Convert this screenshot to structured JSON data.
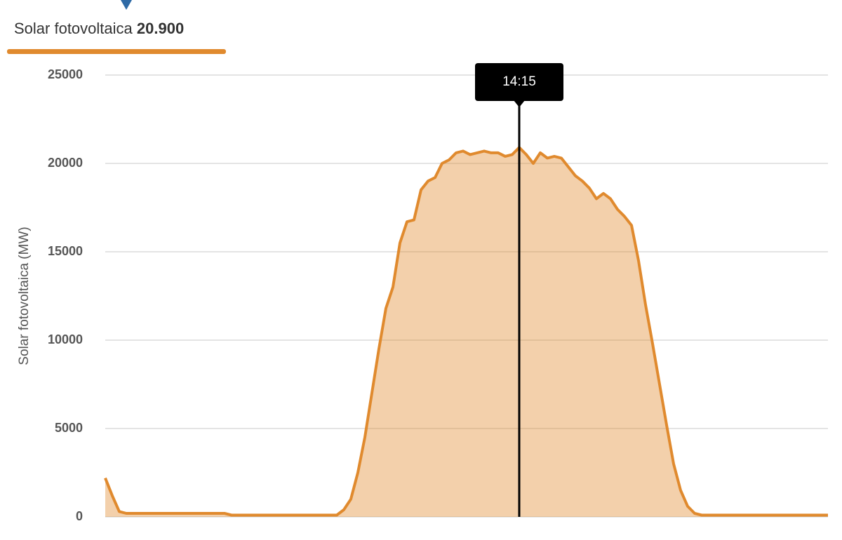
{
  "chart_data": {
    "type": "area",
    "ylabel": "Solar fotovoltaica (MW)",
    "readout_value": "20.900",
    "categories": [
      null,
      null,
      null,
      null,
      null,
      null,
      null,
      null,
      null,
      null,
      null,
      null,
      null,
      null,
      null,
      null,
      null,
      null,
      null,
      null,
      null,
      null,
      null,
      null,
      null,
      null,
      null,
      null,
      null,
      null,
      null,
      null,
      null,
      null,
      null,
      null,
      null,
      null,
      null,
      null,
      null,
      null,
      null,
      null,
      null,
      null,
      null,
      null,
      null,
      null,
      null,
      null,
      null,
      null,
      null,
      null,
      null,
      null,
      null,
      "14:15",
      null,
      null,
      null,
      null,
      null,
      null,
      null,
      null,
      null,
      null,
      null,
      null,
      null,
      null,
      null,
      null,
      null,
      null,
      null,
      null,
      null,
      null,
      null,
      null,
      null,
      null,
      null,
      null,
      null,
      null,
      null,
      null,
      null,
      null,
      null,
      null,
      null,
      null,
      null,
      null,
      null,
      null,
      null,
      null
    ],
    "series": [
      {
        "name": "Solar fotovoltaica",
        "color": "#e08a2e",
        "values": [
          2200,
          1200,
          300,
          200,
          200,
          200,
          200,
          200,
          200,
          200,
          200,
          200,
          200,
          200,
          200,
          200,
          200,
          200,
          100,
          100,
          100,
          100,
          100,
          100,
          100,
          100,
          100,
          100,
          100,
          100,
          100,
          100,
          100,
          100,
          400,
          1000,
          2500,
          4500,
          7000,
          9500,
          11800,
          13000,
          15500,
          16700,
          16800,
          18500,
          19000,
          19200,
          20000,
          20200,
          20600,
          20700,
          20500,
          20600,
          20700,
          20600,
          20600,
          20400,
          20500,
          20900,
          20500,
          20000,
          20600,
          20300,
          20400,
          20300,
          19800,
          19300,
          19000,
          18600,
          18000,
          18300,
          18000,
          17400,
          17000,
          16500,
          14500,
          12000,
          9800,
          7500,
          5200,
          3000,
          1500,
          600,
          200,
          100,
          100,
          100,
          100,
          100,
          100,
          100,
          100,
          100,
          100,
          100,
          100,
          100,
          100,
          100,
          100,
          100,
          100,
          100
        ]
      }
    ],
    "ylim": [
      0,
      25000
    ],
    "yticks": [
      0,
      5000,
      10000,
      15000,
      20000,
      25000
    ],
    "grid": true
  }
}
